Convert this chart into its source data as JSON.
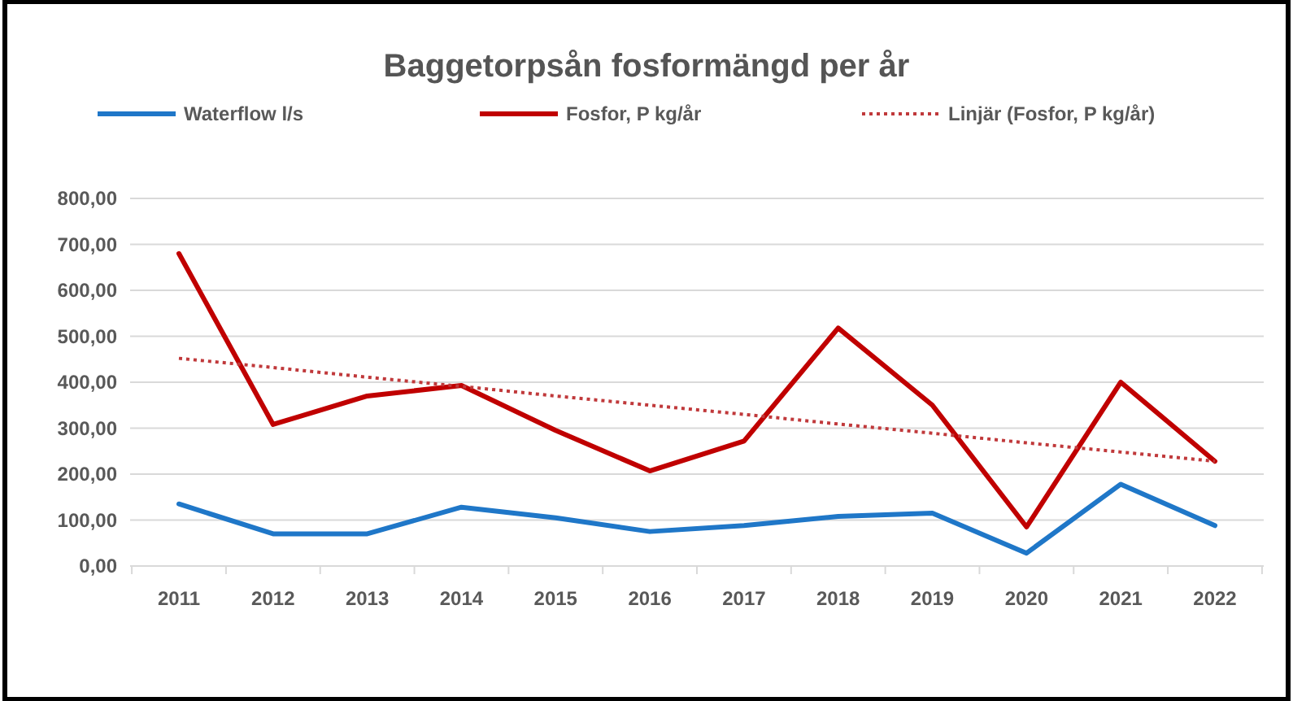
{
  "chart_data": {
    "type": "line",
    "title": "Baggetorpsån fosformängd per år",
    "categories": [
      "2011",
      "2012",
      "2013",
      "2014",
      "2015",
      "2016",
      "2017",
      "2018",
      "2019",
      "2020",
      "2021",
      "2022"
    ],
    "series": [
      {
        "name": "Waterflow l/s",
        "color": "#1f77c8",
        "values": [
          135,
          70,
          70,
          128,
          105,
          75,
          88,
          108,
          115,
          28,
          178,
          88
        ]
      },
      {
        "name": "Fosfor, P kg/år",
        "color": "#c00000",
        "values": [
          680,
          308,
          370,
          393,
          295,
          207,
          272,
          518,
          350,
          85,
          400,
          228
        ]
      },
      {
        "name": "Linjär (Fosfor, P kg/år)",
        "color": "#c0393b",
        "line_style": "dotted",
        "values": [
          452,
          432,
          411,
          391,
          370,
          350,
          330,
          309,
          289,
          268,
          248,
          228
        ]
      }
    ],
    "ylim": [
      0,
      800
    ],
    "yticks": [
      {
        "value": 0,
        "label": "0,00"
      },
      {
        "value": 100,
        "label": "100,00"
      },
      {
        "value": 200,
        "label": "200,00"
      },
      {
        "value": 300,
        "label": "300,00"
      },
      {
        "value": 400,
        "label": "400,00"
      },
      {
        "value": 500,
        "label": "500,00"
      },
      {
        "value": 600,
        "label": "600,00"
      },
      {
        "value": 700,
        "label": "700,00"
      },
      {
        "value": 800,
        "label": "800,00"
      }
    ],
    "grid": "y",
    "legend": "top"
  }
}
